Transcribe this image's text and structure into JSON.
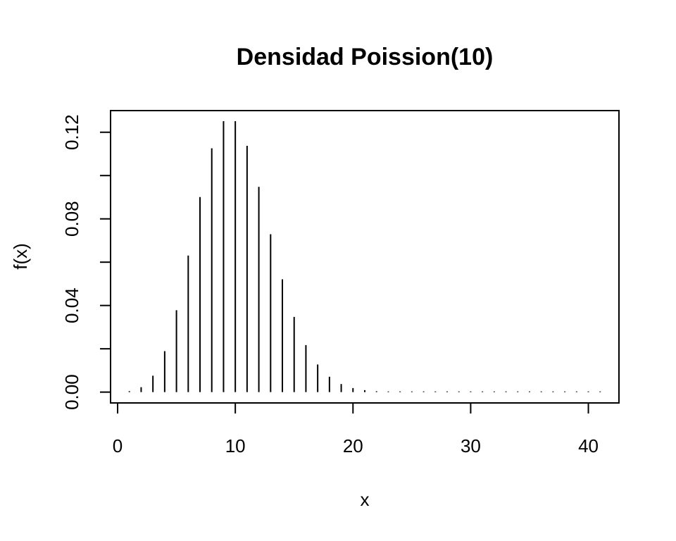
{
  "chart_data": {
    "type": "bar",
    "style": "vertical lines (type=h)",
    "title": "Densidad Poission(10)",
    "xlabel": "x",
    "ylabel": "f(x)",
    "xlim": [
      -0.6,
      42.6
    ],
    "ylim": [
      -0.005,
      0.13
    ],
    "x_ticks": [
      0,
      10,
      20,
      30,
      40
    ],
    "x_tick_labels": [
      "0",
      "10",
      "20",
      "30",
      "40"
    ],
    "y_ticks": [
      0.0,
      0.02,
      0.04,
      0.06,
      0.08,
      0.1,
      0.12
    ],
    "y_tick_labels": [
      "0.00",
      "",
      "0.04",
      "",
      "0.08",
      "",
      "0.12"
    ],
    "grid": false,
    "legend": "none",
    "color": "#000000",
    "x": [
      1,
      2,
      3,
      4,
      5,
      6,
      7,
      8,
      9,
      10,
      11,
      12,
      13,
      14,
      15,
      16,
      17,
      18,
      19,
      20,
      21,
      22,
      23,
      24,
      25,
      26,
      27,
      28,
      29,
      30,
      31,
      32,
      33,
      34,
      35,
      36,
      37,
      38,
      39,
      40,
      41
    ],
    "values": [
      0.00045,
      0.00227,
      0.00757,
      0.01892,
      0.03783,
      0.06306,
      0.09008,
      0.1126,
      0.12511,
      0.12511,
      0.11374,
      0.09478,
      0.07291,
      0.05208,
      0.03472,
      0.0217,
      0.01276,
      0.00709,
      0.00373,
      0.00187,
      0.00089,
      0.0004,
      0.00018,
      7e-05,
      3e-05,
      1e-05,
      0.0,
      0.0,
      0.0,
      0.0,
      0.0,
      0.0,
      0.0,
      0.0,
      0.0,
      0.0,
      0.0,
      0.0,
      0.0,
      0.0,
      0.0
    ]
  }
}
